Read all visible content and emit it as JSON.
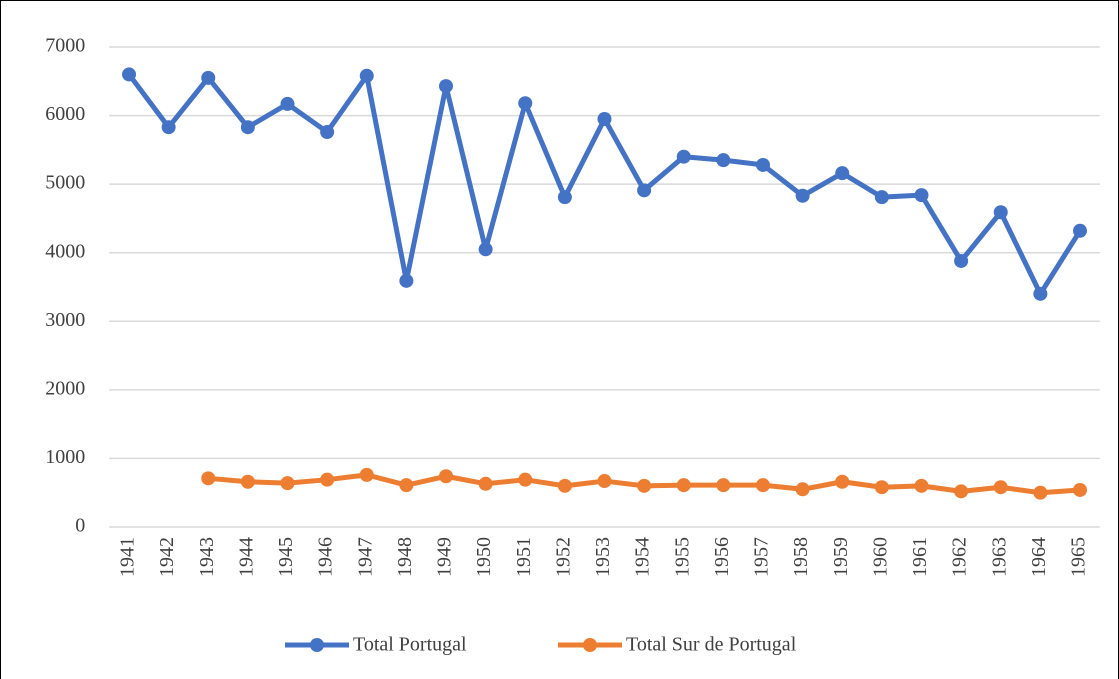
{
  "chart_data": {
    "type": "line",
    "categories": [
      "1941",
      "1942",
      "1943",
      "1944",
      "1945",
      "1946",
      "1947",
      "1948",
      "1949",
      "1950",
      "1951",
      "1952",
      "1953",
      "1954",
      "1955",
      "1956",
      "1957",
      "1958",
      "1959",
      "1960",
      "1961",
      "1962",
      "1963",
      "1964",
      "1965"
    ],
    "series": [
      {
        "name": "Total Portugal",
        "color": "#4472c4",
        "values": [
          6600,
          5830,
          6550,
          5830,
          6170,
          5760,
          6580,
          3590,
          6430,
          4050,
          6180,
          4810,
          5950,
          4910,
          5400,
          5350,
          5280,
          4830,
          5160,
          4810,
          4840,
          3880,
          4590,
          3400,
          4320
        ]
      },
      {
        "name": "Total Sur de Portugal",
        "color": "#ed7d31",
        "values": [
          null,
          null,
          710,
          660,
          640,
          690,
          760,
          610,
          740,
          630,
          690,
          600,
          670,
          600,
          610,
          610,
          610,
          550,
          660,
          580,
          600,
          520,
          580,
          500,
          540
        ]
      }
    ],
    "ylim": [
      0,
      7000
    ],
    "yticks": [
      0,
      1000,
      2000,
      3000,
      4000,
      5000,
      6000,
      7000
    ],
    "grid": true,
    "legend": "bottom"
  }
}
